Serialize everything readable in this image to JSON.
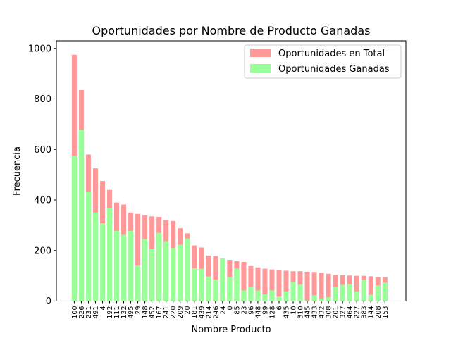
{
  "chart_data": {
    "type": "bar",
    "title": "Oportunidades por Nombre de Producto Ganadas",
    "xlabel": "Nombre Producto",
    "ylabel": "Frecuencia",
    "ylim": [
      0,
      1030
    ],
    "yticks": [
      0,
      200,
      400,
      600,
      800,
      1000
    ],
    "grid": false,
    "legend_position": "top-right",
    "categories": [
      "100",
      "226",
      "231",
      "491",
      "4",
      "192",
      "111",
      "132",
      "495",
      "29",
      "148",
      "452",
      "167",
      "241",
      "220",
      "209",
      "20",
      "181",
      "439",
      "214",
      "246",
      "24",
      "0",
      "85",
      "23",
      "96",
      "448",
      "99",
      "128",
      "6",
      "435",
      "10",
      "310",
      "445",
      "433",
      "432",
      "308",
      "201",
      "327",
      "464",
      "227",
      "383",
      "144",
      "208",
      "153"
    ],
    "series": [
      {
        "name": "Oportunidades en Total",
        "color": "#ff9999",
        "values": [
          975,
          835,
          580,
          525,
          475,
          440,
          390,
          382,
          350,
          345,
          340,
          335,
          333,
          320,
          317,
          288,
          268,
          220,
          212,
          180,
          178,
          168,
          163,
          158,
          155,
          138,
          133,
          128,
          125,
          122,
          120,
          118,
          118,
          116,
          115,
          112,
          108,
          103,
          102,
          101,
          100,
          100,
          98,
          95,
          95
        ]
      },
      {
        "name": "Oportunidades Ganadas",
        "color": "#99ff99",
        "values": [
          575,
          678,
          433,
          350,
          308,
          367,
          278,
          262,
          278,
          140,
          245,
          207,
          270,
          237,
          210,
          223,
          248,
          130,
          128,
          97,
          85,
          168,
          95,
          128,
          42,
          55,
          42,
          26,
          42,
          18,
          38,
          76,
          65,
          3,
          23,
          10,
          15,
          56,
          64,
          67,
          38,
          82,
          25,
          62,
          73
        ]
      }
    ]
  }
}
